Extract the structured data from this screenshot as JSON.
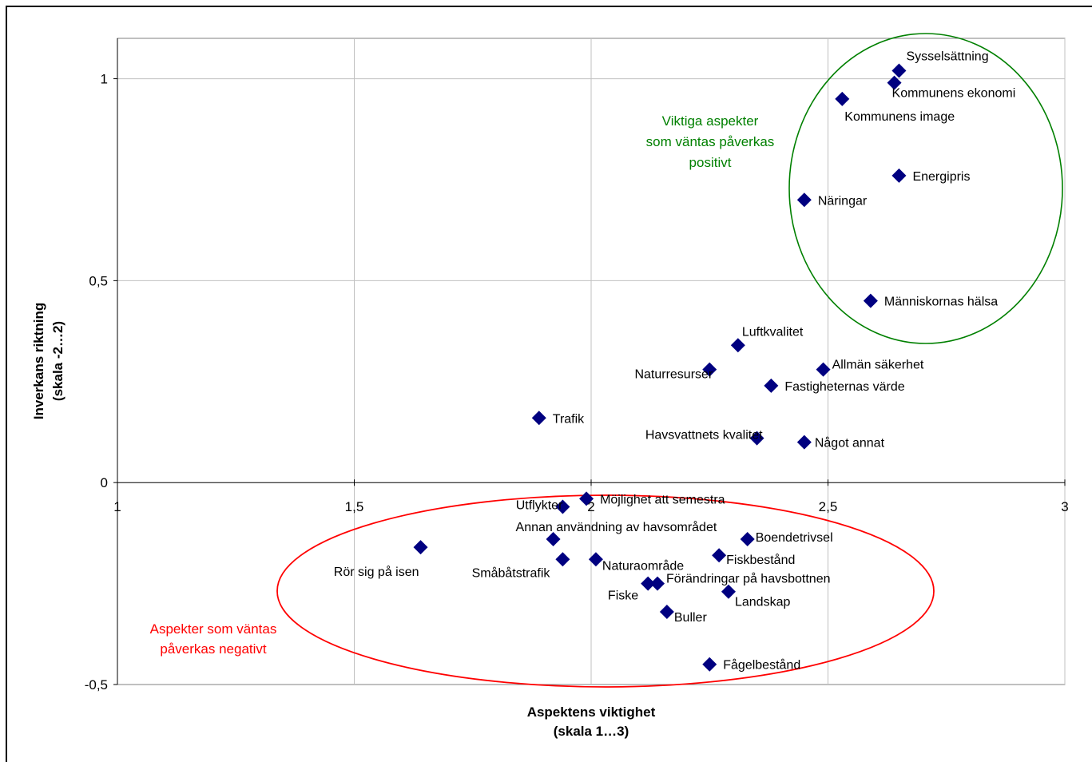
{
  "chart_data": {
    "type": "scatter",
    "title": "",
    "xlabel": [
      "Aspektens viktighet",
      "(skala 1…3)"
    ],
    "ylabel": [
      "Inverkans riktning",
      "(skala -2…2)"
    ],
    "xlim": [
      1,
      3
    ],
    "ylim": [
      -0.5,
      1.1
    ],
    "x_ticks": [
      {
        "value": 1,
        "label": "1"
      },
      {
        "value": 1.5,
        "label": "1,5"
      },
      {
        "value": 2,
        "label": "2"
      },
      {
        "value": 2.5,
        "label": "2,5"
      },
      {
        "value": 3,
        "label": "3"
      }
    ],
    "y_ticks": [
      {
        "value": -0.5,
        "label": "-0,5"
      },
      {
        "value": 0,
        "label": "0"
      },
      {
        "value": 0.5,
        "label": "0,5"
      },
      {
        "value": 1,
        "label": "1"
      }
    ],
    "grid": true,
    "marker_color": "#000080",
    "points": [
      {
        "label": "Sysselsättning",
        "x": 2.65,
        "y": 1.02,
        "pos": "above-right"
      },
      {
        "label": "Kommunens ekonomi",
        "x": 2.64,
        "y": 0.99,
        "pos": "below-right"
      },
      {
        "label": "Kommunens image",
        "x": 2.53,
        "y": 0.95,
        "pos": "below-right"
      },
      {
        "label": "Energipris",
        "x": 2.65,
        "y": 0.76,
        "pos": "right"
      },
      {
        "label": "Näringar",
        "x": 2.45,
        "y": 0.7,
        "pos": "right"
      },
      {
        "label": "Människornas hälsa",
        "x": 2.59,
        "y": 0.45,
        "pos": "right"
      },
      {
        "label": "Luftkvalitet",
        "x": 2.31,
        "y": 0.34,
        "pos": "above-right"
      },
      {
        "label": "Allmän säkerhet",
        "x": 2.49,
        "y": 0.28,
        "pos": "above-right"
      },
      {
        "label": "Naturresurser",
        "x": 2.25,
        "y": 0.28,
        "pos": "left"
      },
      {
        "label": "Fastigheternas värde",
        "x": 2.38,
        "y": 0.24,
        "pos": "right"
      },
      {
        "label": "Trafik",
        "x": 1.89,
        "y": 0.16,
        "pos": "right"
      },
      {
        "label": "Havsvattnets kvalitet",
        "x": 2.35,
        "y": 0.11,
        "pos": "left"
      },
      {
        "label": "Något annat",
        "x": 2.45,
        "y": 0.1,
        "pos": "right"
      },
      {
        "label": "Möjlighet att semestra",
        "x": 1.99,
        "y": -0.04,
        "pos": "right"
      },
      {
        "label": "Utflykter",
        "x": 1.94,
        "y": -0.06,
        "pos": "left"
      },
      {
        "label": "Annan användning av havsområdet",
        "x": 1.92,
        "y": -0.14,
        "pos": "above-right"
      },
      {
        "label": "Boendetrivsel",
        "x": 2.33,
        "y": -0.14,
        "pos": "right"
      },
      {
        "label": "Rör sig på isen",
        "x": 1.64,
        "y": -0.16,
        "pos": "below-left"
      },
      {
        "label": "Fiskbestånd",
        "x": 2.27,
        "y": -0.18,
        "pos": "right"
      },
      {
        "label": "Småbåtstrafik",
        "x": 1.94,
        "y": -0.19,
        "pos": "below-left"
      },
      {
        "label": "Naturaområde",
        "x": 2.01,
        "y": -0.19,
        "pos": "right"
      },
      {
        "label": "Förändringar på havsbottnen",
        "x": 2.14,
        "y": -0.25,
        "pos": "right"
      },
      {
        "label": "Fiske",
        "x": 2.12,
        "y": -0.25,
        "pos": "below-left"
      },
      {
        "label": "Landskap",
        "x": 2.29,
        "y": -0.27,
        "pos": "right"
      },
      {
        "label": "Buller",
        "x": 2.16,
        "y": -0.32,
        "pos": "right"
      },
      {
        "label": "Fågelbestånd",
        "x": 2.25,
        "y": -0.45,
        "pos": "right"
      }
    ],
    "annotations": [
      {
        "text": [
          "Viktiga aspekter",
          "som väntas påverkas",
          "positivt"
        ],
        "color": "#008000"
      },
      {
        "text": [
          "Aspekter som väntas",
          "påverkas negativt"
        ],
        "color": "#ff0000"
      }
    ]
  }
}
